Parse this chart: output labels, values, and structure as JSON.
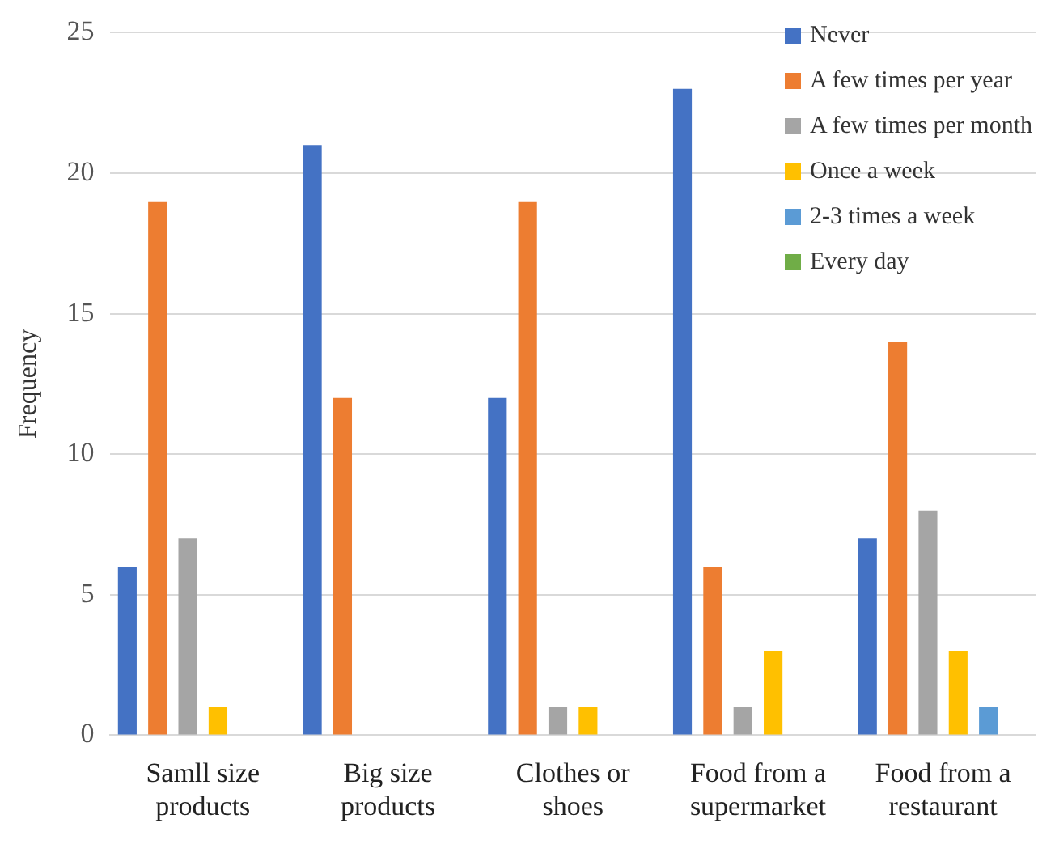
{
  "chart_data": {
    "type": "bar",
    "ylabel": "Frequency",
    "categories": [
      "Samll size products",
      "Big size products",
      "Clothes or shoes",
      "Food from a supermarket",
      "Food from a restaurant"
    ],
    "series": [
      {
        "name": "Never",
        "color": "#4472c4",
        "values": [
          6,
          21,
          12,
          23,
          7
        ]
      },
      {
        "name": "A few times per year",
        "color": "#ed7d31",
        "values": [
          19,
          12,
          19,
          6,
          14
        ]
      },
      {
        "name": "A few times per month",
        "color": "#a5a5a5",
        "values": [
          7,
          0,
          1,
          1,
          8
        ]
      },
      {
        "name": "Once a week",
        "color": "#ffc000",
        "values": [
          1,
          0,
          1,
          3,
          3
        ]
      },
      {
        "name": "2-3 times a week",
        "color": "#5b9bd5",
        "values": [
          0,
          0,
          0,
          0,
          1
        ]
      },
      {
        "name": "Every day",
        "color": "#70ad47",
        "values": [
          0,
          0,
          0,
          0,
          0
        ]
      }
    ],
    "ylim": [
      0,
      25
    ],
    "yticks": [
      0,
      5,
      10,
      15,
      20,
      25
    ],
    "grid": "y",
    "legend": "top right"
  }
}
